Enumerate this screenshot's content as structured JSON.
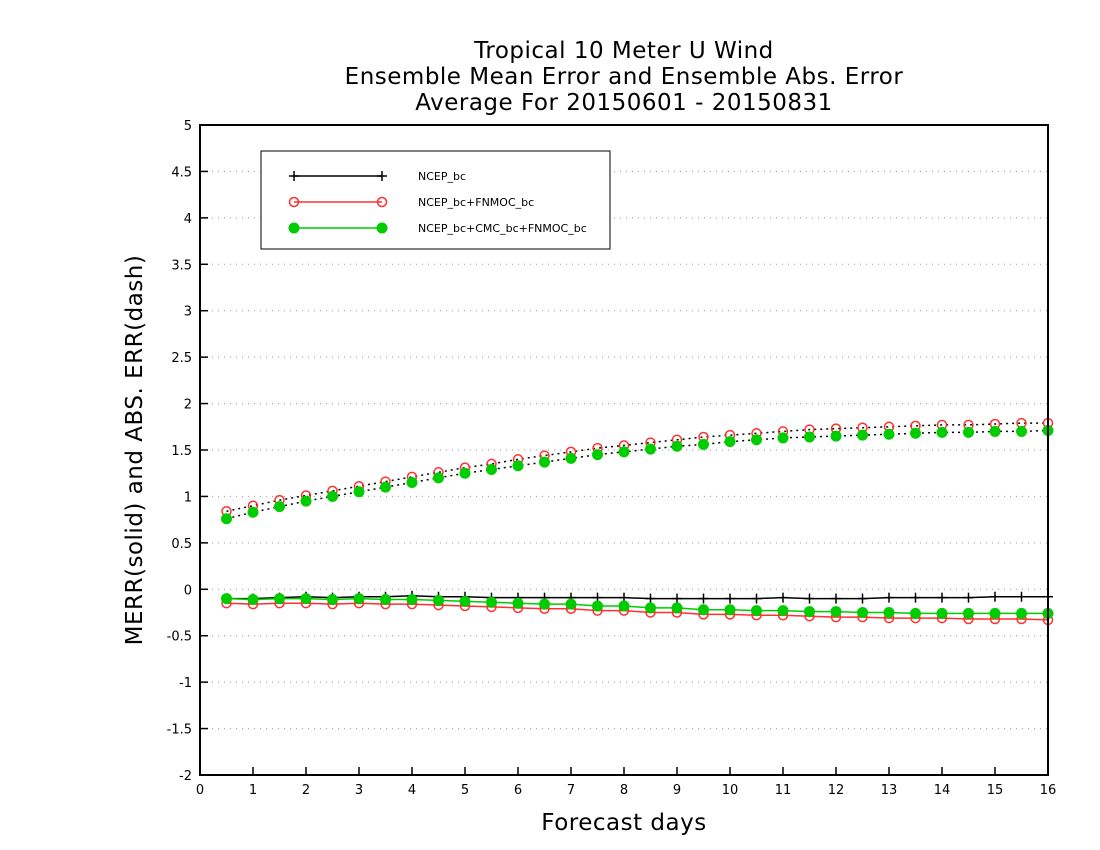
{
  "chart_data": {
    "type": "line",
    "title_lines": [
      "Tropical 10 Meter U Wind",
      "Ensemble Mean Error and Ensemble Abs. Error",
      "Average For 20150601 - 20150831"
    ],
    "xlabel": "Forecast days",
    "ylabel": "MERR(solid) and ABS. ERR(dash)",
    "xlim": [
      0,
      16
    ],
    "ylim": [
      -2,
      5
    ],
    "xticks": [
      "0",
      "1",
      "2",
      "3",
      "4",
      "5",
      "6",
      "7",
      "8",
      "9",
      "10",
      "11",
      "12",
      "13",
      "14",
      "15",
      "16"
    ],
    "yticks": [
      "-2",
      "-1.5",
      "-1",
      "-0.5",
      "0",
      "0.5",
      "1",
      "1.5",
      "2",
      "2.5",
      "3",
      "3.5",
      "4",
      "4.5",
      "5"
    ],
    "grid": "dotted horizontal",
    "legend": "top-left",
    "x": [
      0.5,
      1,
      1.5,
      2,
      2.5,
      3,
      3.5,
      4,
      4.5,
      5,
      5.5,
      6,
      6.5,
      7,
      7.5,
      8,
      8.5,
      9,
      9.5,
      10,
      10.5,
      11,
      11.5,
      12,
      12.5,
      13,
      13.5,
      14,
      14.5,
      15,
      15.5,
      16
    ],
    "series": [
      {
        "name": "NCEP_bc",
        "color": "#000000",
        "marker": "plus",
        "merr": [
          -0.1,
          -0.1,
          -0.09,
          -0.08,
          -0.09,
          -0.08,
          -0.08,
          -0.07,
          -0.08,
          -0.08,
          -0.09,
          -0.09,
          -0.09,
          -0.09,
          -0.09,
          -0.09,
          -0.1,
          -0.1,
          -0.1,
          -0.1,
          -0.1,
          -0.09,
          -0.1,
          -0.1,
          -0.1,
          -0.09,
          -0.09,
          -0.09,
          -0.09,
          -0.08,
          -0.08,
          -0.08
        ],
        "abs_err": []
      },
      {
        "name": "NCEP_bc+FNMOC_bc",
        "color": "#ff3030",
        "marker": "open-circle",
        "merr": [
          -0.15,
          -0.16,
          -0.15,
          -0.15,
          -0.16,
          -0.15,
          -0.16,
          -0.16,
          -0.17,
          -0.18,
          -0.19,
          -0.2,
          -0.21,
          -0.21,
          -0.23,
          -0.23,
          -0.25,
          -0.25,
          -0.27,
          -0.27,
          -0.28,
          -0.28,
          -0.29,
          -0.3,
          -0.3,
          -0.31,
          -0.31,
          -0.31,
          -0.32,
          -0.32,
          -0.32,
          -0.33
        ],
        "abs_err": [
          0.84,
          0.9,
          0.96,
          1.01,
          1.06,
          1.11,
          1.16,
          1.21,
          1.26,
          1.31,
          1.35,
          1.4,
          1.44,
          1.48,
          1.52,
          1.55,
          1.58,
          1.61,
          1.64,
          1.66,
          1.68,
          1.7,
          1.72,
          1.73,
          1.74,
          1.75,
          1.76,
          1.77,
          1.77,
          1.78,
          1.79,
          1.79
        ]
      },
      {
        "name": "NCEP_bc+CMC_bc+FNMOC_bc",
        "color": "#00cc00",
        "marker": "filled-circle",
        "merr": [
          -0.1,
          -0.11,
          -0.1,
          -0.1,
          -0.11,
          -0.1,
          -0.11,
          -0.11,
          -0.12,
          -0.13,
          -0.14,
          -0.15,
          -0.16,
          -0.16,
          -0.18,
          -0.18,
          -0.2,
          -0.2,
          -0.22,
          -0.22,
          -0.23,
          -0.23,
          -0.24,
          -0.24,
          -0.25,
          -0.25,
          -0.26,
          -0.26,
          -0.26,
          -0.26,
          -0.26,
          -0.26
        ],
        "abs_err": [
          0.76,
          0.83,
          0.89,
          0.95,
          1.0,
          1.05,
          1.1,
          1.15,
          1.2,
          1.25,
          1.29,
          1.33,
          1.37,
          1.41,
          1.45,
          1.48,
          1.51,
          1.54,
          1.56,
          1.59,
          1.61,
          1.63,
          1.64,
          1.65,
          1.66,
          1.67,
          1.68,
          1.69,
          1.69,
          1.7,
          1.7,
          1.71
        ]
      }
    ]
  }
}
